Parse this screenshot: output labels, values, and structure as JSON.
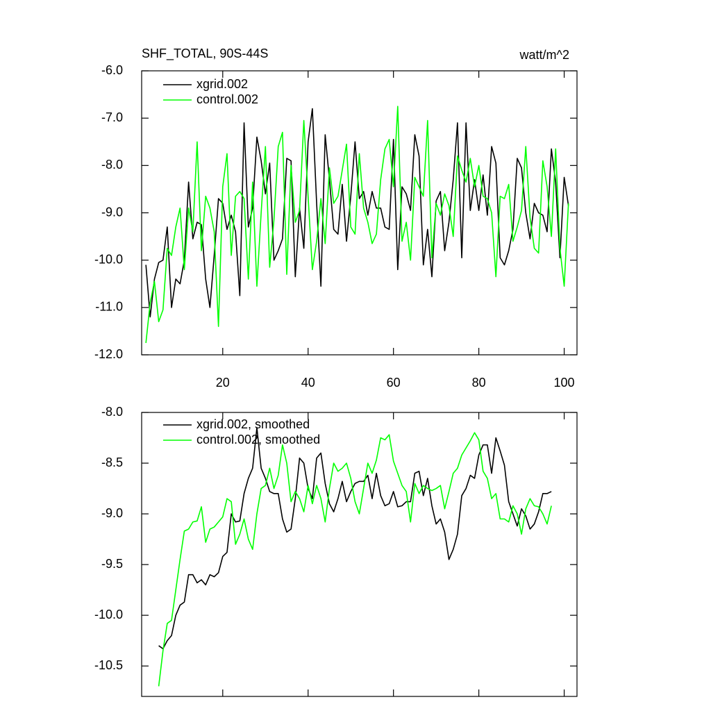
{
  "chart_data": [
    {
      "type": "line",
      "title": "SHF_TOTAL, 90S-44S",
      "units": "watt/m^2",
      "x": [
        2,
        3,
        4,
        5,
        6,
        7,
        8,
        9,
        10,
        11,
        12,
        13,
        14,
        15,
        16,
        17,
        18,
        19,
        20,
        21,
        22,
        23,
        24,
        25,
        26,
        27,
        28,
        29,
        30,
        31,
        32,
        33,
        34,
        35,
        36,
        37,
        38,
        39,
        40,
        41,
        42,
        43,
        44,
        45,
        46,
        47,
        48,
        49,
        50,
        51,
        52,
        53,
        54,
        55,
        56,
        57,
        58,
        59,
        60,
        61,
        62,
        63,
        64,
        65,
        66,
        67,
        68,
        69,
        70,
        71,
        72,
        73,
        74,
        75,
        76,
        77,
        78,
        79,
        80,
        81,
        82,
        83,
        84,
        85,
        86,
        87,
        88,
        89,
        90,
        91,
        92,
        93,
        94,
        95,
        96,
        97,
        98,
        99,
        100,
        101
      ],
      "series": [
        {
          "name": "xgrid.002",
          "color": "#000000",
          "values": [
            -10.1,
            -11.2,
            -10.4,
            -10.05,
            -10.0,
            -9.3,
            -11.0,
            -10.4,
            -10.5,
            -10.0,
            -8.35,
            -9.55,
            -9.2,
            -9.25,
            -10.4,
            -11.0,
            -9.9,
            -8.7,
            -8.8,
            -9.35,
            -9.05,
            -9.4,
            -10.75,
            -7.1,
            -9.3,
            -8.9,
            -7.4,
            -7.9,
            -8.6,
            -7.95,
            -10.0,
            -9.8,
            -9.55,
            -7.85,
            -7.9,
            -10.35,
            -8.9,
            -9.75,
            -7.5,
            -6.8,
            -8.8,
            -10.55,
            -7.35,
            -8.3,
            -9.35,
            -9.45,
            -8.4,
            -9.6,
            -8.65,
            -7.5,
            -8.7,
            -8.55,
            -9.05,
            -8.55,
            -8.9,
            -8.9,
            -9.3,
            -9.35,
            -7.45,
            -10.2,
            -8.45,
            -8.6,
            -8.95,
            -7.35,
            -7.8,
            -10.1,
            -9.35,
            -10.35,
            -8.75,
            -8.55,
            -9.8,
            -9.2,
            -8.3,
            -7.1,
            -9.95,
            -7.1,
            -8.95,
            -8.3,
            -8.95,
            -8.2,
            -9.05,
            -7.6,
            -7.95,
            -9.95,
            -10.1,
            -9.8,
            -9.35,
            -7.85,
            -8.05,
            -9.0,
            -9.55,
            -8.8,
            -9.0,
            -9.05,
            -9.4,
            -7.65,
            -8.35,
            -9.95,
            -8.25,
            -8.85
          ]
        },
        {
          "name": "control.002",
          "color": "#00ff00",
          "values": [
            -11.75,
            -10.9,
            -10.45,
            -11.3,
            -11.05,
            -9.75,
            -9.9,
            -9.3,
            -8.9,
            -10.2,
            -8.9,
            -9.4,
            -7.5,
            -9.8,
            -8.65,
            -8.9,
            -9.4,
            -11.4,
            -8.45,
            -7.75,
            -9.9,
            -8.65,
            -8.55,
            -8.7,
            -10.4,
            -8.35,
            -10.55,
            -9.0,
            -7.6,
            -10.15,
            -9.15,
            -7.6,
            -7.3,
            -10.3,
            -8.0,
            -9.2,
            -8.95,
            -7.05,
            -8.65,
            -10.2,
            -9.6,
            -8.7,
            -9.65,
            -8.05,
            -8.8,
            -8.65,
            -8.1,
            -7.55,
            -9.3,
            -9.45,
            -7.75,
            -8.9,
            -9.2,
            -9.65,
            -9.45,
            -8.3,
            -7.65,
            -7.45,
            -8.45,
            -6.75,
            -9.6,
            -9.2,
            -10.0,
            -8.25,
            -8.45,
            -8.65,
            -7.05,
            -9.95,
            -8.8,
            -9.05,
            -8.6,
            -8.85,
            -9.5,
            -7.8,
            -8.1,
            -8.35,
            -7.85,
            -8.45,
            -8.0,
            -8.65,
            -8.7,
            -9.0,
            -10.35,
            -8.65,
            -8.7,
            -8.4,
            -9.6,
            -9.3,
            -8.95,
            -7.6,
            -9.1,
            -9.75,
            -9.85,
            -7.9,
            -8.45,
            -9.5,
            -7.65,
            -9.75,
            -10.55,
            -8.8
          ]
        }
      ],
      "xlim": [
        1,
        103
      ],
      "xticks": [
        20,
        40,
        60,
        80,
        100
      ],
      "ylim": [
        -12,
        -6
      ],
      "yticks": [
        {
          "value": -12,
          "label": "-12.0"
        },
        {
          "value": -11,
          "label": "-11.0"
        },
        {
          "value": -10,
          "label": "-10.0"
        },
        {
          "value": -9,
          "label": "-9.0"
        },
        {
          "value": -8,
          "label": "-8.0"
        },
        {
          "value": -7,
          "label": "-7.0"
        },
        {
          "value": -6,
          "label": "-6.0"
        }
      ],
      "show_xtick_labels": true
    },
    {
      "type": "line",
      "x": [
        5,
        6,
        7,
        8,
        9,
        10,
        11,
        12,
        13,
        14,
        15,
        16,
        17,
        18,
        19,
        20,
        21,
        22,
        23,
        24,
        25,
        26,
        27,
        28,
        29,
        30,
        31,
        32,
        33,
        34,
        35,
        36,
        37,
        38,
        39,
        40,
        41,
        42,
        43,
        44,
        45,
        46,
        47,
        48,
        49,
        50,
        51,
        52,
        53,
        54,
        55,
        56,
        57,
        58,
        59,
        60,
        61,
        62,
        63,
        64,
        65,
        66,
        67,
        68,
        69,
        70,
        71,
        72,
        73,
        74,
        75,
        76,
        77,
        78,
        79,
        80,
        81,
        82,
        83,
        84,
        85,
        86,
        87,
        88,
        89,
        90,
        91,
        92,
        93,
        94,
        95,
        96,
        97
      ],
      "series": [
        {
          "name": "xgrid.002, smoothed",
          "color": "#000000",
          "values": [
            -10.3,
            -10.33,
            -10.25,
            -10.2,
            -10.0,
            -9.9,
            -9.87,
            -9.6,
            -9.6,
            -9.68,
            -9.65,
            -9.7,
            -9.6,
            -9.62,
            -9.58,
            -9.42,
            -9.38,
            -9.0,
            -9.08,
            -9.07,
            -8.8,
            -8.65,
            -8.55,
            -8.15,
            -8.55,
            -8.65,
            -8.78,
            -8.8,
            -8.8,
            -9.05,
            -9.18,
            -9.15,
            -8.85,
            -8.45,
            -8.5,
            -8.75,
            -8.85,
            -8.45,
            -8.4,
            -8.7,
            -8.9,
            -8.98,
            -8.85,
            -8.68,
            -8.88,
            -8.78,
            -8.7,
            -8.68,
            -8.68,
            -8.62,
            -8.85,
            -8.6,
            -8.82,
            -8.92,
            -8.9,
            -8.78,
            -8.93,
            -8.92,
            -8.88,
            -8.88,
            -8.6,
            -8.58,
            -8.82,
            -8.65,
            -8.92,
            -9.1,
            -9.05,
            -9.18,
            -9.45,
            -9.35,
            -9.2,
            -8.82,
            -8.75,
            -8.62,
            -8.65,
            -8.42,
            -8.32,
            -8.32,
            -8.6,
            -8.25,
            -8.38,
            -8.52,
            -8.88,
            -9.0,
            -9.12,
            -8.95,
            -9.02,
            -9.15,
            -9.1,
            -8.98,
            -8.8,
            -8.8,
            -8.78
          ]
        },
        {
          "name": "control.002, smoothed",
          "color": "#00ff00",
          "values": [
            -10.7,
            -10.35,
            -10.08,
            -10.05,
            -9.75,
            -9.45,
            -9.17,
            -9.15,
            -9.08,
            -9.07,
            -8.93,
            -9.28,
            -9.15,
            -9.13,
            -9.08,
            -9.03,
            -8.85,
            -8.88,
            -9.3,
            -9.2,
            -9.05,
            -9.25,
            -9.35,
            -9.0,
            -8.75,
            -8.72,
            -8.55,
            -8.75,
            -8.62,
            -8.32,
            -8.5,
            -8.88,
            -8.78,
            -8.85,
            -8.98,
            -8.72,
            -8.9,
            -8.72,
            -8.85,
            -9.08,
            -8.75,
            -8.5,
            -8.58,
            -8.55,
            -8.5,
            -8.65,
            -8.88,
            -9.0,
            -8.75,
            -8.5,
            -8.6,
            -8.47,
            -8.25,
            -8.27,
            -8.22,
            -8.48,
            -8.6,
            -8.72,
            -8.78,
            -9.08,
            -8.7,
            -8.8,
            -8.72,
            -8.75,
            -8.77,
            -8.75,
            -8.72,
            -8.95,
            -8.78,
            -8.6,
            -8.55,
            -8.42,
            -8.35,
            -8.28,
            -8.2,
            -8.27,
            -8.58,
            -8.65,
            -8.85,
            -8.8,
            -9.05,
            -9.05,
            -9.08,
            -8.92,
            -9.0,
            -9.2,
            -8.95,
            -8.85,
            -8.92,
            -8.93,
            -9.0,
            -9.1,
            -8.92
          ]
        }
      ],
      "xlim": [
        1,
        103
      ],
      "xticks": [
        20,
        40,
        60,
        80,
        100
      ],
      "ylim": [
        -10.8,
        -8.0
      ],
      "yticks": [
        {
          "value": -10.5,
          "label": "-10.5"
        },
        {
          "value": -10,
          "label": "-10.0"
        },
        {
          "value": -9.5,
          "label": "-9.5"
        },
        {
          "value": -9,
          "label": "-9.0"
        },
        {
          "value": -8.5,
          "label": "-8.5"
        },
        {
          "value": -8,
          "label": "-8.0"
        }
      ],
      "show_xtick_labels": false
    }
  ]
}
